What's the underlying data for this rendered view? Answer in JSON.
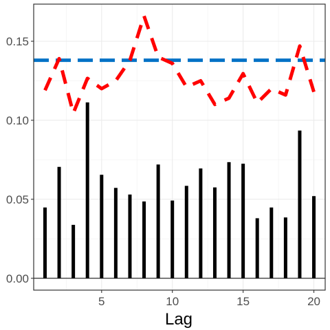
{
  "chart_data": {
    "type": "bar",
    "title": "",
    "xlabel": "Lag",
    "ylabel": "",
    "x": [
      1,
      2,
      3,
      4,
      5,
      6,
      7,
      8,
      9,
      10,
      11,
      12,
      13,
      14,
      15,
      16,
      17,
      18,
      19,
      20
    ],
    "xlim": [
      0.2,
      20.8
    ],
    "ylim": [
      -0.0075,
      0.1735
    ],
    "x_ticks": [
      5,
      10,
      15,
      20
    ],
    "y_ticks": [
      0,
      0.05,
      0.1,
      0.15
    ],
    "x_tick_labels": [
      "5",
      "10",
      "15",
      "20"
    ],
    "y_tick_labels": [
      "0.00",
      "0.05",
      "0.10",
      "0.15"
    ],
    "grid": true,
    "baseline": 0,
    "series": [
      {
        "kind": "bar",
        "color": "#000000",
        "values": [
          0.0448,
          0.0705,
          0.0338,
          0.1113,
          0.0655,
          0.0572,
          0.053,
          0.0486,
          0.072,
          0.0492,
          0.0585,
          0.0695,
          0.0575,
          0.0735,
          0.0725,
          0.038,
          0.0448,
          0.0385,
          0.0935,
          0.052
        ]
      },
      {
        "kind": "line",
        "style": "dashed",
        "color": "#ff0000",
        "values": [
          0.119,
          0.139,
          0.1045,
          0.1265,
          0.12,
          0.125,
          0.138,
          0.166,
          0.14,
          0.136,
          0.121,
          0.125,
          0.11,
          0.114,
          0.1295,
          0.111,
          0.12,
          0.116,
          0.147,
          0.118
        ]
      },
      {
        "kind": "hline",
        "style": "dashed",
        "color": "#0072c6",
        "value": 0.138
      }
    ]
  }
}
